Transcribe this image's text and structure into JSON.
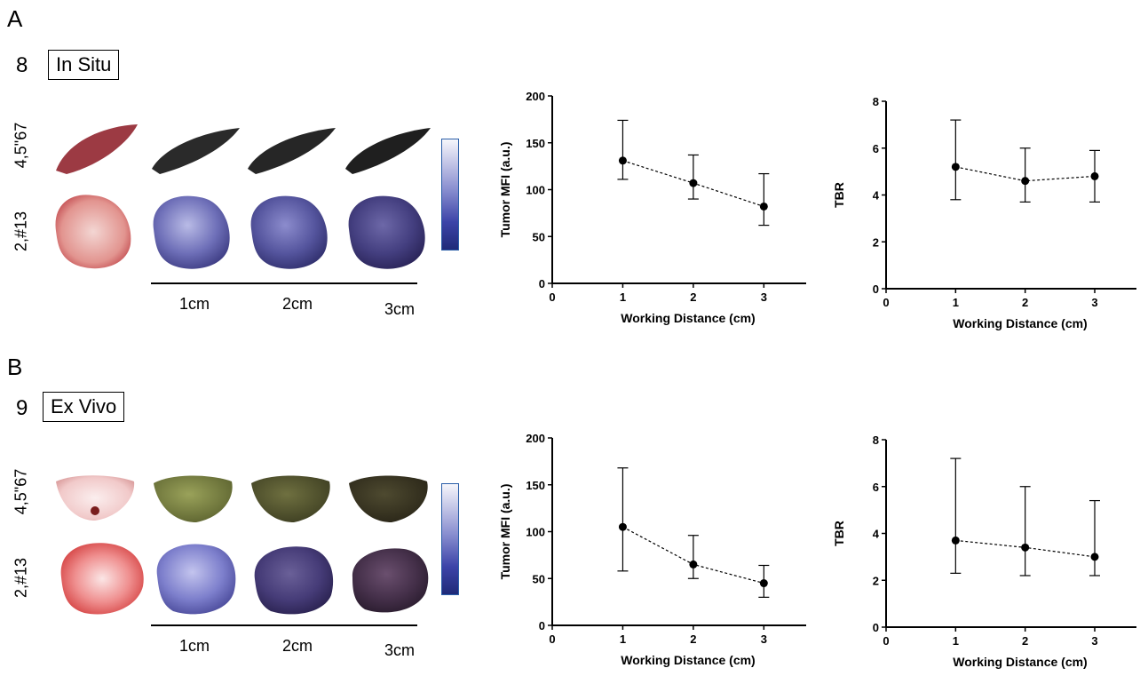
{
  "panels": [
    {
      "letter": "A",
      "number": "8",
      "condition": "In Situ",
      "row_labels": [
        "4,5\"67",
        "2,#13"
      ],
      "distance_labels": [
        "1cm",
        "2cm",
        "3cm"
      ]
    },
    {
      "letter": "B",
      "number": "9",
      "condition": "Ex Vivo",
      "row_labels": [
        "4,5\"67",
        "2,#13"
      ],
      "distance_labels": [
        "1cm",
        "2cm",
        "3cm"
      ]
    }
  ],
  "colors": {
    "line": "#000000",
    "colorbar_top": "#f6f6fb",
    "colorbar_bottom": "#1f2a78"
  },
  "chart_data": [
    {
      "type": "line",
      "x": [
        1,
        2,
        3
      ],
      "values": [
        131,
        107,
        82
      ],
      "err_low": [
        111,
        90,
        62
      ],
      "err_high": [
        174,
        137,
        117
      ],
      "xlabel": "Working Distance (cm)",
      "ylabel": "Tumor MFI (a.u.)",
      "xlim": [
        0,
        3.6
      ],
      "ylim": [
        0,
        200
      ],
      "xticks": [
        0,
        1,
        2,
        3
      ],
      "yticks": [
        0,
        50,
        100,
        150,
        200
      ]
    },
    {
      "type": "line",
      "x": [
        1,
        2,
        3
      ],
      "values": [
        5.2,
        4.6,
        4.8
      ],
      "err_low": [
        3.8,
        3.7,
        3.7
      ],
      "err_high": [
        7.2,
        6.0,
        5.9
      ],
      "xlabel": "Working Distance (cm)",
      "ylabel": "TBR",
      "xlim": [
        0,
        3.6
      ],
      "ylim": [
        0,
        8
      ],
      "xticks": [
        0,
        1,
        2,
        3
      ],
      "yticks": [
        0,
        2,
        4,
        6,
        8
      ]
    },
    {
      "type": "line",
      "x": [
        1,
        2,
        3
      ],
      "values": [
        105,
        65,
        45
      ],
      "err_low": [
        58,
        50,
        30
      ],
      "err_high": [
        168,
        96,
        64
      ],
      "xlabel": "Working Distance (cm)",
      "ylabel": "Tumor MFI (a.u.)",
      "xlim": [
        0,
        3.6
      ],
      "ylim": [
        0,
        200
      ],
      "xticks": [
        0,
        1,
        2,
        3
      ],
      "yticks": [
        0,
        50,
        100,
        150,
        200
      ]
    },
    {
      "type": "line",
      "x": [
        1,
        2,
        3
      ],
      "values": [
        3.7,
        3.4,
        3.0
      ],
      "err_low": [
        2.3,
        2.2,
        2.2
      ],
      "err_high": [
        7.2,
        6.0,
        5.4
      ],
      "xlabel": "Working Distance (cm)",
      "ylabel": "TBR",
      "xlim": [
        0,
        3.6
      ],
      "ylim": [
        0,
        8
      ],
      "xticks": [
        0,
        1,
        2,
        3
      ],
      "yticks": [
        0,
        2,
        4,
        6,
        8
      ]
    }
  ]
}
